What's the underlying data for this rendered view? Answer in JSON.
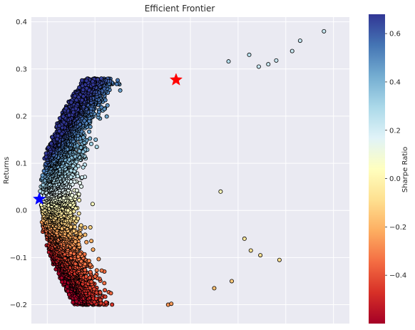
{
  "chart_data": {
    "type": "scatter",
    "title": "Efficient Frontier",
    "xlabel": "",
    "ylabel": "Returns",
    "xlim": [
      0.0,
      1.0
    ],
    "ylim": [
      -0.24,
      0.41
    ],
    "grid": true,
    "yticks": [
      -0.2,
      -0.1,
      0.0,
      0.1,
      0.2,
      0.3,
      0.4
    ],
    "ytick_labels": [
      "−0.2",
      "−0.1",
      "0.0",
      "0.1",
      "0.2",
      "0.3",
      "0.4"
    ],
    "colorbar": {
      "label": "Sharpe Ratio",
      "range": [
        -0.6,
        0.68
      ],
      "ticks": [
        -0.4,
        -0.2,
        0.0,
        0.2,
        0.4,
        0.6
      ],
      "tick_labels": [
        "−0.4",
        "−0.2",
        "0.0",
        "0.2",
        "0.4",
        "0.6"
      ],
      "colormap": "RdYlBu"
    },
    "cloud": {
      "point_count": 6000,
      "sharpe_ratio_range": [
        -0.6,
        0.68
      ]
    },
    "highlights": [
      {
        "marker": "star",
        "color": "#ff0000",
        "x": 0.455,
        "y": 0.277
      },
      {
        "marker": "star",
        "color": "#0000ff",
        "x": 0.025,
        "y": 0.024
      }
    ],
    "outlier_points": [
      {
        "x": 0.92,
        "y": 0.38
      },
      {
        "x": 0.845,
        "y": 0.36
      },
      {
        "x": 0.82,
        "y": 0.338
      },
      {
        "x": 0.745,
        "y": 0.31
      },
      {
        "x": 0.715,
        "y": 0.305
      },
      {
        "x": 0.77,
        "y": 0.318
      },
      {
        "x": 0.685,
        "y": 0.33
      },
      {
        "x": 0.62,
        "y": 0.316
      },
      {
        "x": 0.78,
        "y": -0.105
      },
      {
        "x": 0.67,
        "y": -0.06
      },
      {
        "x": 0.69,
        "y": -0.085
      },
      {
        "x": 0.595,
        "y": 0.04
      },
      {
        "x": 0.63,
        "y": -0.15
      },
      {
        "x": 0.43,
        "y": -0.2
      },
      {
        "x": 0.44,
        "y": -0.198
      },
      {
        "x": 0.575,
        "y": -0.165
      },
      {
        "x": 0.72,
        "y": -0.095
      }
    ]
  }
}
